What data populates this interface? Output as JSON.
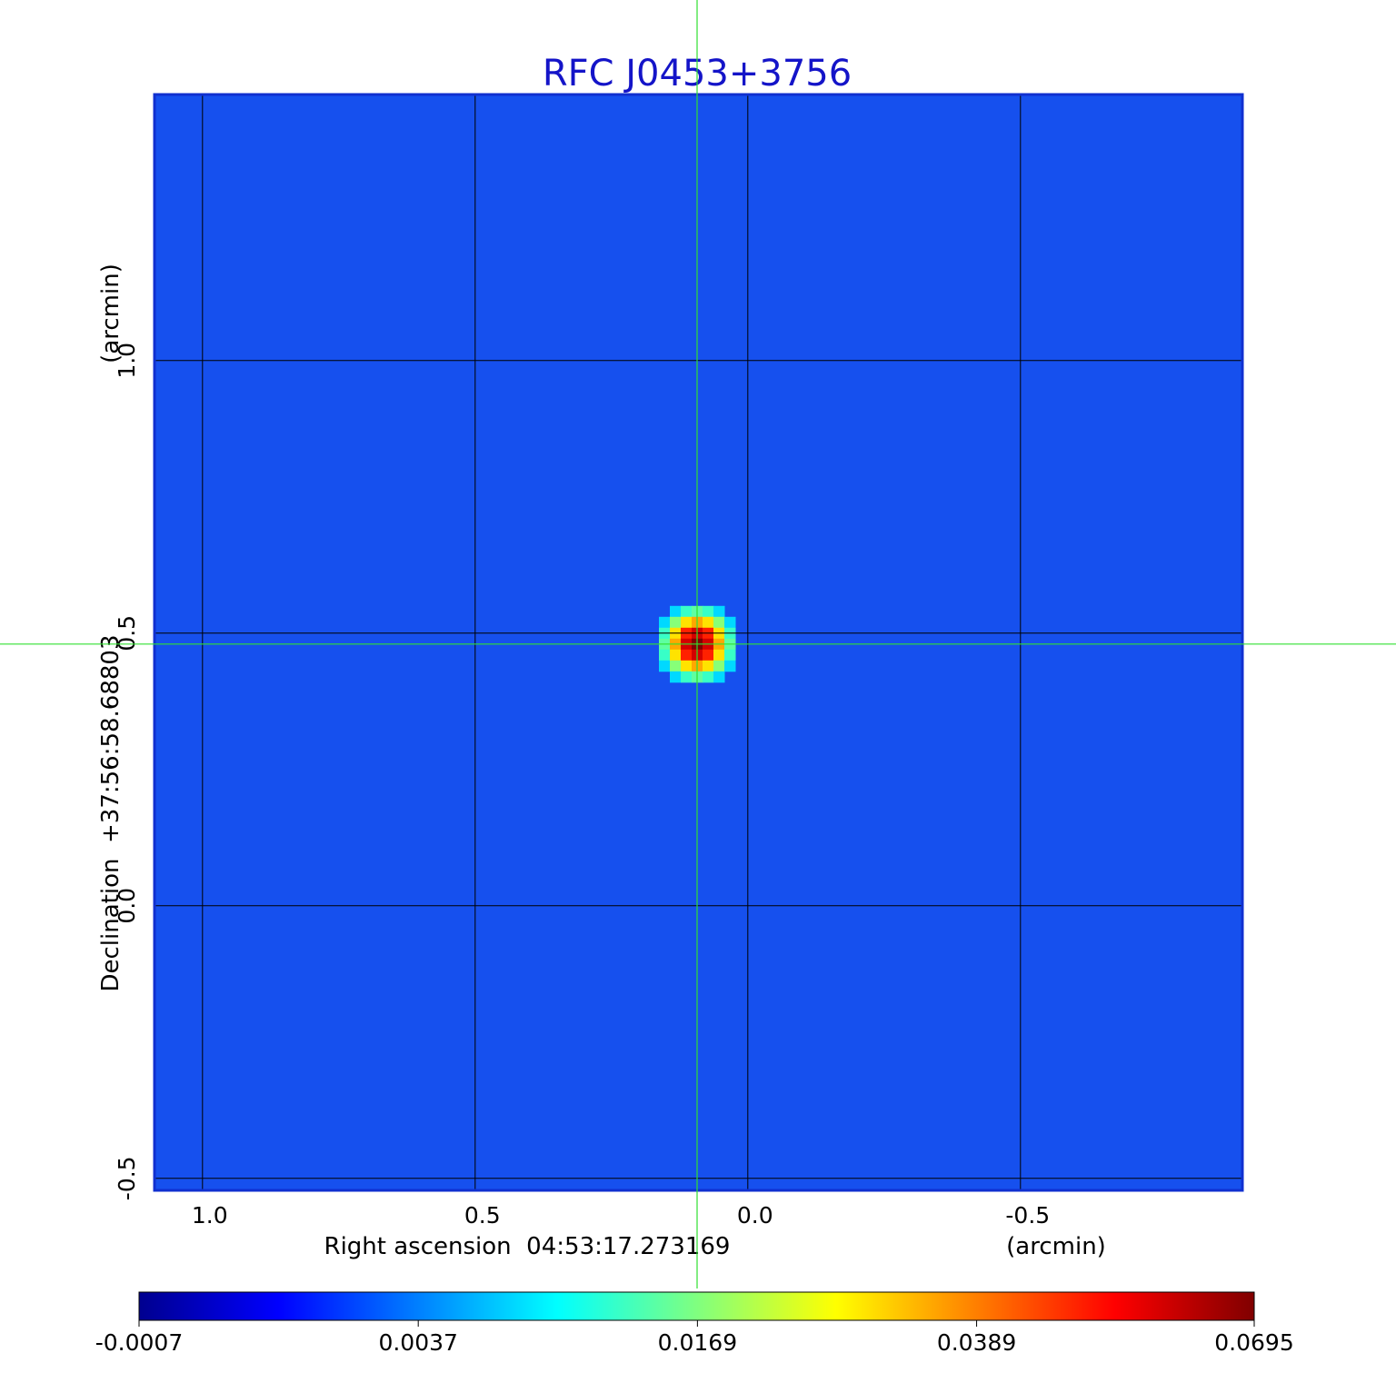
{
  "chart_data": {
    "type": "image",
    "title": "RFC J0453+3756",
    "xlabel": "Right ascension  04:53:17.273169",
    "ylabel": "Declination  +37:56:58.68803",
    "xunit": "(arcmin)",
    "yunit": "(arcmin)",
    "xlim": [
      1.088,
      -0.907
    ],
    "ylim": [
      -0.522,
      1.488
    ],
    "xticks": [
      {
        "value": 1,
        "label": "1.0"
      },
      0.5,
      {
        "value": 0,
        "label": "0.0"
      },
      -0.5
    ],
    "yticks": [
      -0.5,
      {
        "value": 0,
        "label": "0.0"
      },
      0.5,
      {
        "value": 1,
        "label": "1.0"
      }
    ],
    "grid": true,
    "colormap": "jet",
    "colorbar": {
      "scale": "sqrt",
      "lim": [
        -0.0007,
        0.0695
      ],
      "ticks": [
        -0.0007,
        0.0037,
        0.0169,
        0.0389,
        0.0695
      ]
    },
    "source": {
      "x": 0.093,
      "y": 0.48,
      "peak": 0.0695,
      "beam_fwhm": 0.08
    }
  }
}
